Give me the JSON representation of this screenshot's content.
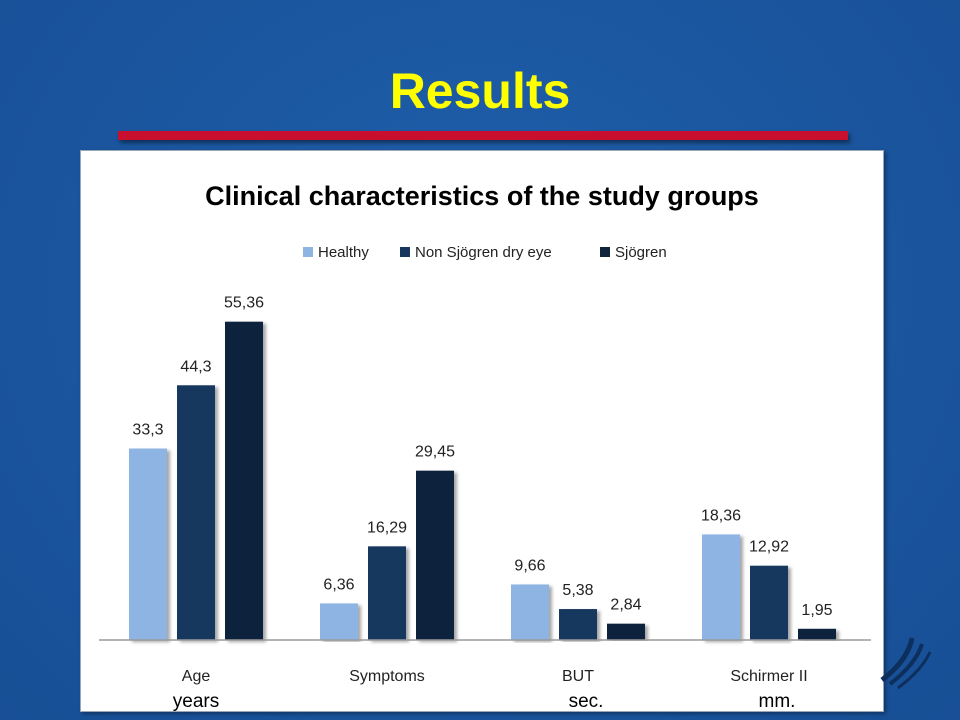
{
  "slide": {
    "title": "Results"
  },
  "chart_data": {
    "type": "bar",
    "title": "Clinical characteristics of the study groups",
    "categories": [
      "Age",
      "Symptoms",
      "BUT",
      "Schirmer II"
    ],
    "category_units": [
      "years",
      "",
      "sec.",
      "mm."
    ],
    "series": [
      {
        "name": "Healthy",
        "values": [
          33.3,
          6.36,
          9.66,
          18.36
        ],
        "labels": [
          "33,3",
          "6,36",
          "9,66",
          "18,36"
        ],
        "color": "#8db4e2"
      },
      {
        "name": "Non Sjögren dry eye",
        "values": [
          44.3,
          16.29,
          5.38,
          12.92
        ],
        "labels": [
          "44,3",
          "16,29",
          "5,38",
          "12,92"
        ],
        "color": "#17375e"
      },
      {
        "name": "Sjögren",
        "values": [
          55.36,
          29.45,
          2.84,
          1.95
        ],
        "labels": [
          "55,36",
          "29,45",
          "2,84",
          "1,95"
        ],
        "color": "#10243e"
      }
    ],
    "ylim": [
      0,
      60
    ],
    "grid": false,
    "legend_position": "top"
  }
}
